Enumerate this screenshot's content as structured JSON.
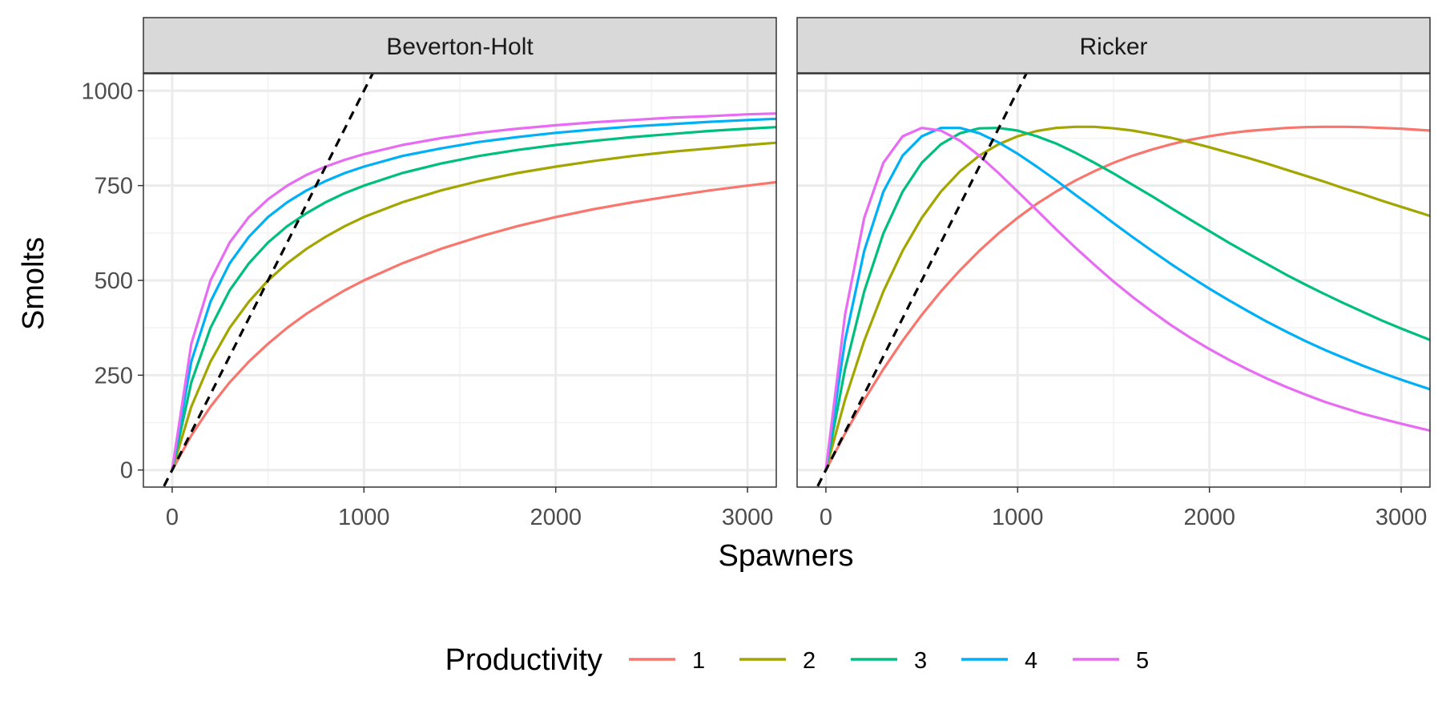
{
  "chart_data": {
    "type": "line",
    "xlabel": "Spawners",
    "ylabel": "Smolts",
    "x_ticks": [
      0,
      1000,
      2000,
      3000
    ],
    "y_ticks": [
      0,
      250,
      500,
      750,
      1000
    ],
    "xlim": [
      -150,
      3150
    ],
    "ylim": [
      -45,
      1045
    ],
    "grid": true,
    "legend": {
      "title": "Productivity",
      "position": "bottom",
      "entries": [
        "1",
        "2",
        "3",
        "4",
        "5"
      ]
    },
    "series_colors": [
      "#F8766D",
      "#A3A500",
      "#00BF7D",
      "#00B0F6",
      "#E76BF3"
    ],
    "reference_line": {
      "style": "dashed",
      "color": "#000000",
      "slope": 1,
      "intercept": 0
    },
    "panels": [
      {
        "title": "Beverton-Holt",
        "x": [
          0,
          100,
          200,
          300,
          400,
          500,
          600,
          700,
          800,
          900,
          1000,
          1200,
          1400,
          1600,
          1800,
          2000,
          2200,
          2400,
          2600,
          2800,
          3000,
          3150
        ],
        "series": [
          {
            "name": "1",
            "values": [
              0,
              91,
              167,
              231,
              286,
              333,
              375,
              412,
              444,
              474,
              500,
              545,
              583,
              615,
              643,
              667,
              688,
              706,
              722,
              737,
              750,
              759
            ]
          },
          {
            "name": "2",
            "values": [
              0,
              167,
              286,
              375,
              444,
              500,
              545,
              583,
              615,
              643,
              667,
              706,
              737,
              762,
              783,
              800,
              815,
              828,
              839,
              848,
              857,
              863
            ]
          },
          {
            "name": "3",
            "values": [
              0,
              231,
              375,
              474,
              545,
              600,
              643,
              677,
              706,
              730,
              750,
              783,
              808,
              828,
              844,
              857,
              868,
              878,
              886,
              894,
              900,
              904
            ]
          },
          {
            "name": "4",
            "values": [
              0,
              286,
              444,
              545,
              615,
              667,
              706,
              737,
              762,
              783,
              800,
              828,
              848,
              865,
              878,
              889,
              898,
              906,
              912,
              918,
              923,
              926
            ]
          },
          {
            "name": "5",
            "values": [
              0,
              333,
              500,
              600,
              667,
              714,
              750,
              778,
              800,
              818,
              833,
              857,
              875,
              889,
              900,
              909,
              917,
              923,
              929,
              933,
              938,
              940
            ]
          }
        ]
      },
      {
        "title": "Ricker",
        "x": [
          0,
          100,
          200,
          300,
          400,
          500,
          600,
          700,
          800,
          900,
          1000,
          1100,
          1200,
          1300,
          1400,
          1500,
          1600,
          1700,
          1800,
          1900,
          2000,
          2100,
          2200,
          2300,
          2400,
          2500,
          2600,
          2700,
          2800,
          2900,
          3000,
          3150
        ],
        "series": [
          {
            "name": "1",
            "values": [
              0,
              96,
              185,
              266,
              341,
              409,
              471,
              527,
              578,
              624,
              665,
              702,
              734,
              763,
              788,
              810,
              829,
              845,
              859,
              871,
              880,
              888,
              894,
              898,
              902,
              904,
              905,
              905,
              904,
              902,
              900,
              895
            ]
          },
          {
            "name": "2",
            "values": [
              0,
              185,
              341,
              471,
              578,
              665,
              734,
              788,
              829,
              859,
              880,
              894,
              902,
              905,
              905,
              901,
              895,
              886,
              876,
              864,
              851,
              837,
              823,
              808,
              792,
              776,
              760,
              743,
              727,
              710,
              694,
              670
            ]
          },
          {
            "name": "3",
            "values": [
              0,
              266,
              471,
              624,
              734,
              810,
              859,
              888,
              901,
              902,
              895,
              880,
              861,
              837,
              810,
              782,
              752,
              722,
              691,
              660,
              630,
              600,
              571,
              543,
              515,
              489,
              464,
              440,
              417,
              394,
              373,
              343
            ]
          },
          {
            "name": "4",
            "values": [
              0,
              341,
              578,
              734,
              829,
              880,
              902,
              902,
              888,
              864,
              834,
              800,
              764,
              726,
              689,
              651,
              614,
              578,
              543,
              510,
              478,
              448,
              419,
              391,
              365,
              340,
              317,
              296,
              275,
              256,
              238,
              213
            ]
          },
          {
            "name": "5",
            "values": [
              0,
              409,
              665,
              810,
              880,
              902,
              895,
              868,
              829,
              783,
              734,
              685,
              635,
              587,
              541,
              497,
              456,
              418,
              382,
              349,
              319,
              291,
              265,
              241,
              219,
              199,
              180,
              164,
              148,
              135,
              122,
              104
            ]
          }
        ]
      }
    ]
  }
}
